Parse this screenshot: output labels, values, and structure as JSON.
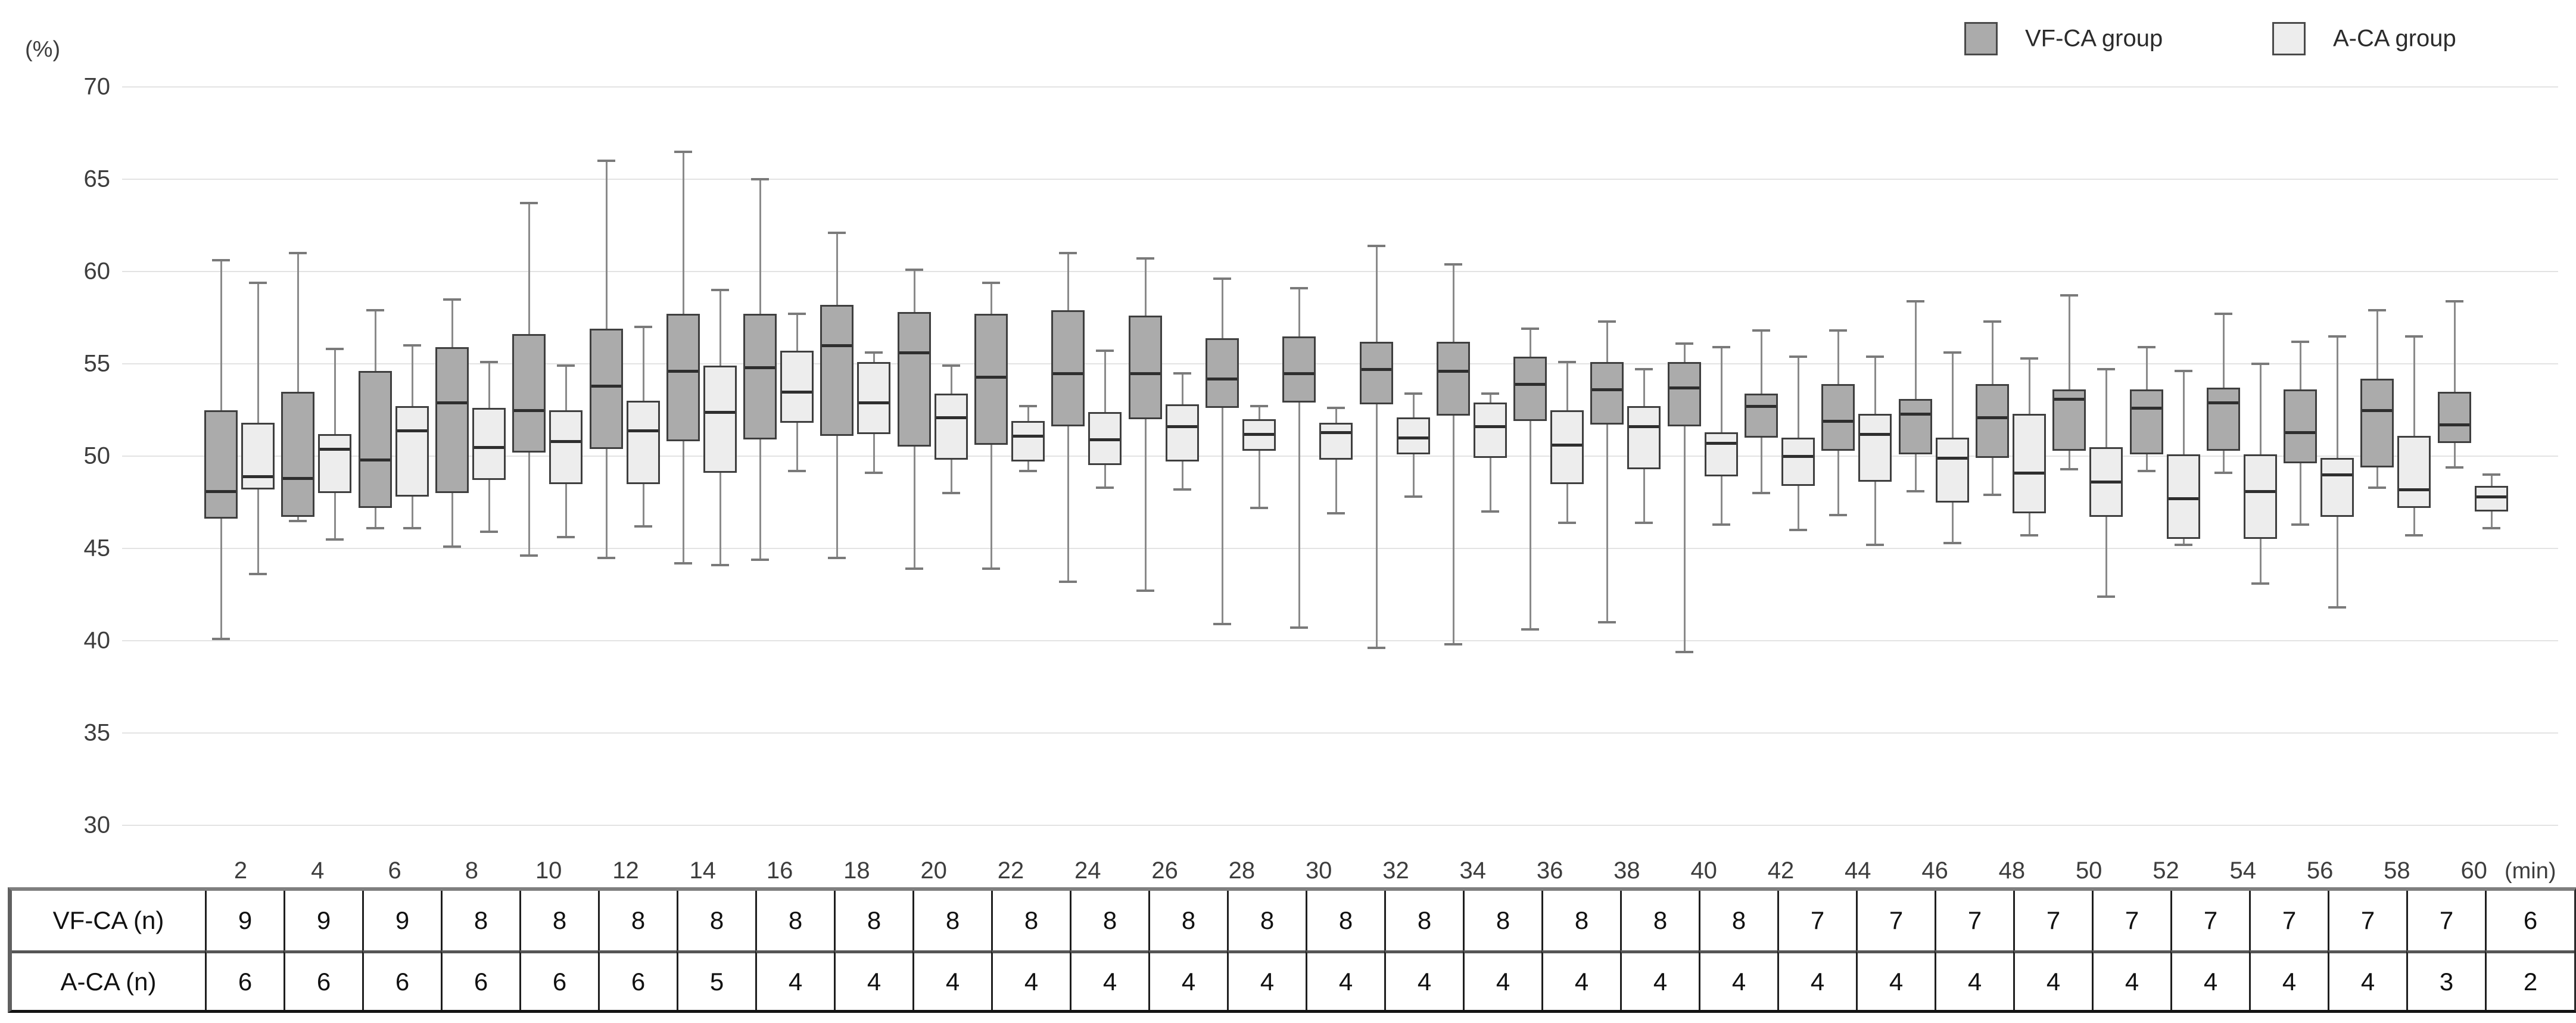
{
  "legend": {
    "items": [
      {
        "label": "VF-CA group",
        "color": "#ababab"
      },
      {
        "label": "A-CA group",
        "color": "#ededed"
      }
    ]
  },
  "y_axis": {
    "unit": "(%)",
    "ticks": [
      70,
      65,
      60,
      55,
      50,
      45,
      40,
      35,
      30
    ],
    "min": 30,
    "max": 70
  },
  "x_axis": {
    "unit": "(min)",
    "ticks": [
      2,
      4,
      6,
      8,
      10,
      12,
      14,
      16,
      18,
      20,
      22,
      24,
      26,
      28,
      30,
      32,
      34,
      36,
      38,
      40,
      42,
      44,
      46,
      48,
      50,
      52,
      54,
      56,
      58,
      60
    ]
  },
  "chart_data": {
    "type": "boxplot",
    "title": "",
    "xlabel": "(min)",
    "ylabel": "(%)",
    "ylim": [
      30,
      70
    ],
    "grid": true,
    "legend_position": "top-right",
    "categories": [
      2,
      4,
      6,
      8,
      10,
      12,
      14,
      16,
      18,
      20,
      22,
      24,
      26,
      28,
      30,
      32,
      34,
      36,
      38,
      40,
      42,
      44,
      46,
      48,
      50,
      52,
      54,
      56,
      58,
      60
    ],
    "series": [
      {
        "name": "VF-CA group",
        "fill": "#ababab",
        "note": "values are [min, q1, median, q3, max] in %",
        "values": [
          [
            40.1,
            46.6,
            48.1,
            52.5,
            60.6
          ],
          [
            46.5,
            46.7,
            48.8,
            53.5,
            61.0
          ],
          [
            46.1,
            47.2,
            49.8,
            54.6,
            57.9
          ],
          [
            45.1,
            48.0,
            52.9,
            55.9,
            58.5
          ],
          [
            44.6,
            50.2,
            52.5,
            56.6,
            63.7
          ],
          [
            44.5,
            50.4,
            53.8,
            56.9,
            66.0
          ],
          [
            44.2,
            50.8,
            54.6,
            57.7,
            66.5
          ],
          [
            44.4,
            50.9,
            54.8,
            57.7,
            65.0
          ],
          [
            44.5,
            51.1,
            56.0,
            58.2,
            62.1
          ],
          [
            43.9,
            50.5,
            55.6,
            57.8,
            60.1
          ],
          [
            43.9,
            50.6,
            54.3,
            57.7,
            59.4
          ],
          [
            43.2,
            51.6,
            54.5,
            57.9,
            61.0
          ],
          [
            42.7,
            52.0,
            54.5,
            57.6,
            60.7
          ],
          [
            40.9,
            52.6,
            54.2,
            56.4,
            59.6
          ],
          [
            40.7,
            52.9,
            54.5,
            56.5,
            59.1
          ],
          [
            39.6,
            52.8,
            54.7,
            56.2,
            61.4
          ],
          [
            39.8,
            52.2,
            54.6,
            56.2,
            60.4
          ],
          [
            40.6,
            51.9,
            53.9,
            55.4,
            56.9
          ],
          [
            41.0,
            51.7,
            53.6,
            55.1,
            57.3
          ],
          [
            39.4,
            51.6,
            53.7,
            55.1,
            56.1
          ],
          [
            48.0,
            51.0,
            52.7,
            53.4,
            56.8
          ],
          [
            46.8,
            50.3,
            51.9,
            53.9,
            56.8
          ],
          [
            48.1,
            50.1,
            52.3,
            53.1,
            58.4
          ],
          [
            47.9,
            49.9,
            52.1,
            53.9,
            57.3
          ],
          [
            49.3,
            50.3,
            53.1,
            53.6,
            58.7
          ],
          [
            49.2,
            50.1,
            52.6,
            53.6,
            55.9
          ],
          [
            49.1,
            50.3,
            52.9,
            53.7,
            57.7
          ],
          [
            46.3,
            49.6,
            51.3,
            53.6,
            56.2
          ],
          [
            48.3,
            49.4,
            52.5,
            54.2,
            57.9
          ],
          [
            49.4,
            50.7,
            51.7,
            53.5,
            58.4
          ]
        ]
      },
      {
        "name": "A-CA group",
        "fill": "#ededed",
        "note": "values are [min, q1, median, q3, max] in %",
        "values": [
          [
            43.6,
            48.2,
            48.9,
            51.8,
            59.4
          ],
          [
            45.5,
            48.0,
            50.4,
            51.2,
            55.8
          ],
          [
            46.1,
            47.8,
            51.4,
            52.7,
            56.0
          ],
          [
            45.9,
            48.7,
            50.5,
            52.6,
            55.1
          ],
          [
            45.6,
            48.5,
            50.8,
            52.5,
            54.9
          ],
          [
            46.2,
            48.5,
            51.4,
            53.0,
            57.0
          ],
          [
            44.1,
            49.1,
            52.4,
            54.9,
            59.0
          ],
          [
            49.2,
            51.8,
            53.5,
            55.7,
            57.7
          ],
          [
            49.1,
            51.2,
            52.9,
            55.1,
            55.6
          ],
          [
            48.0,
            49.8,
            52.1,
            53.4,
            54.9
          ],
          [
            49.2,
            49.7,
            51.1,
            51.9,
            52.7
          ],
          [
            48.3,
            49.5,
            50.9,
            52.4,
            55.7
          ],
          [
            48.2,
            49.7,
            51.6,
            52.8,
            54.5
          ],
          [
            47.2,
            50.3,
            51.2,
            52.0,
            52.7
          ],
          [
            46.9,
            49.8,
            51.3,
            51.8,
            52.6
          ],
          [
            47.8,
            50.1,
            51.0,
            52.1,
            53.4
          ],
          [
            47.0,
            49.9,
            51.6,
            52.9,
            53.4
          ],
          [
            46.4,
            48.5,
            50.6,
            52.5,
            55.1
          ],
          [
            46.4,
            49.3,
            51.6,
            52.7,
            54.7
          ],
          [
            46.3,
            48.9,
            50.7,
            51.3,
            55.9
          ],
          [
            46.0,
            48.4,
            50.0,
            51.0,
            55.4
          ],
          [
            45.2,
            48.6,
            51.2,
            52.3,
            55.4
          ],
          [
            45.3,
            47.5,
            49.9,
            51.0,
            55.6
          ],
          [
            45.7,
            46.9,
            49.1,
            52.3,
            55.3
          ],
          [
            42.4,
            46.7,
            48.6,
            50.5,
            54.7
          ],
          [
            45.2,
            45.5,
            47.7,
            50.1,
            54.6
          ],
          [
            43.1,
            45.5,
            48.1,
            50.1,
            55.0
          ],
          [
            41.8,
            46.7,
            49.0,
            49.9,
            56.5
          ],
          [
            45.7,
            47.2,
            48.2,
            51.1,
            56.5
          ],
          [
            46.1,
            47.0,
            47.8,
            48.4,
            49.0
          ]
        ]
      }
    ]
  },
  "table": {
    "rows": [
      {
        "header": "VF-CA (n)",
        "values": [
          9,
          9,
          9,
          8,
          8,
          8,
          8,
          8,
          8,
          8,
          8,
          8,
          8,
          8,
          8,
          8,
          8,
          8,
          8,
          8,
          7,
          7,
          7,
          7,
          7,
          7,
          7,
          7,
          7,
          6
        ]
      },
      {
        "header": "A-CA (n)",
        "values": [
          6,
          6,
          6,
          6,
          6,
          6,
          5,
          4,
          4,
          4,
          4,
          4,
          4,
          4,
          4,
          4,
          4,
          4,
          4,
          4,
          4,
          4,
          4,
          4,
          4,
          4,
          4,
          4,
          3,
          2
        ]
      }
    ]
  }
}
